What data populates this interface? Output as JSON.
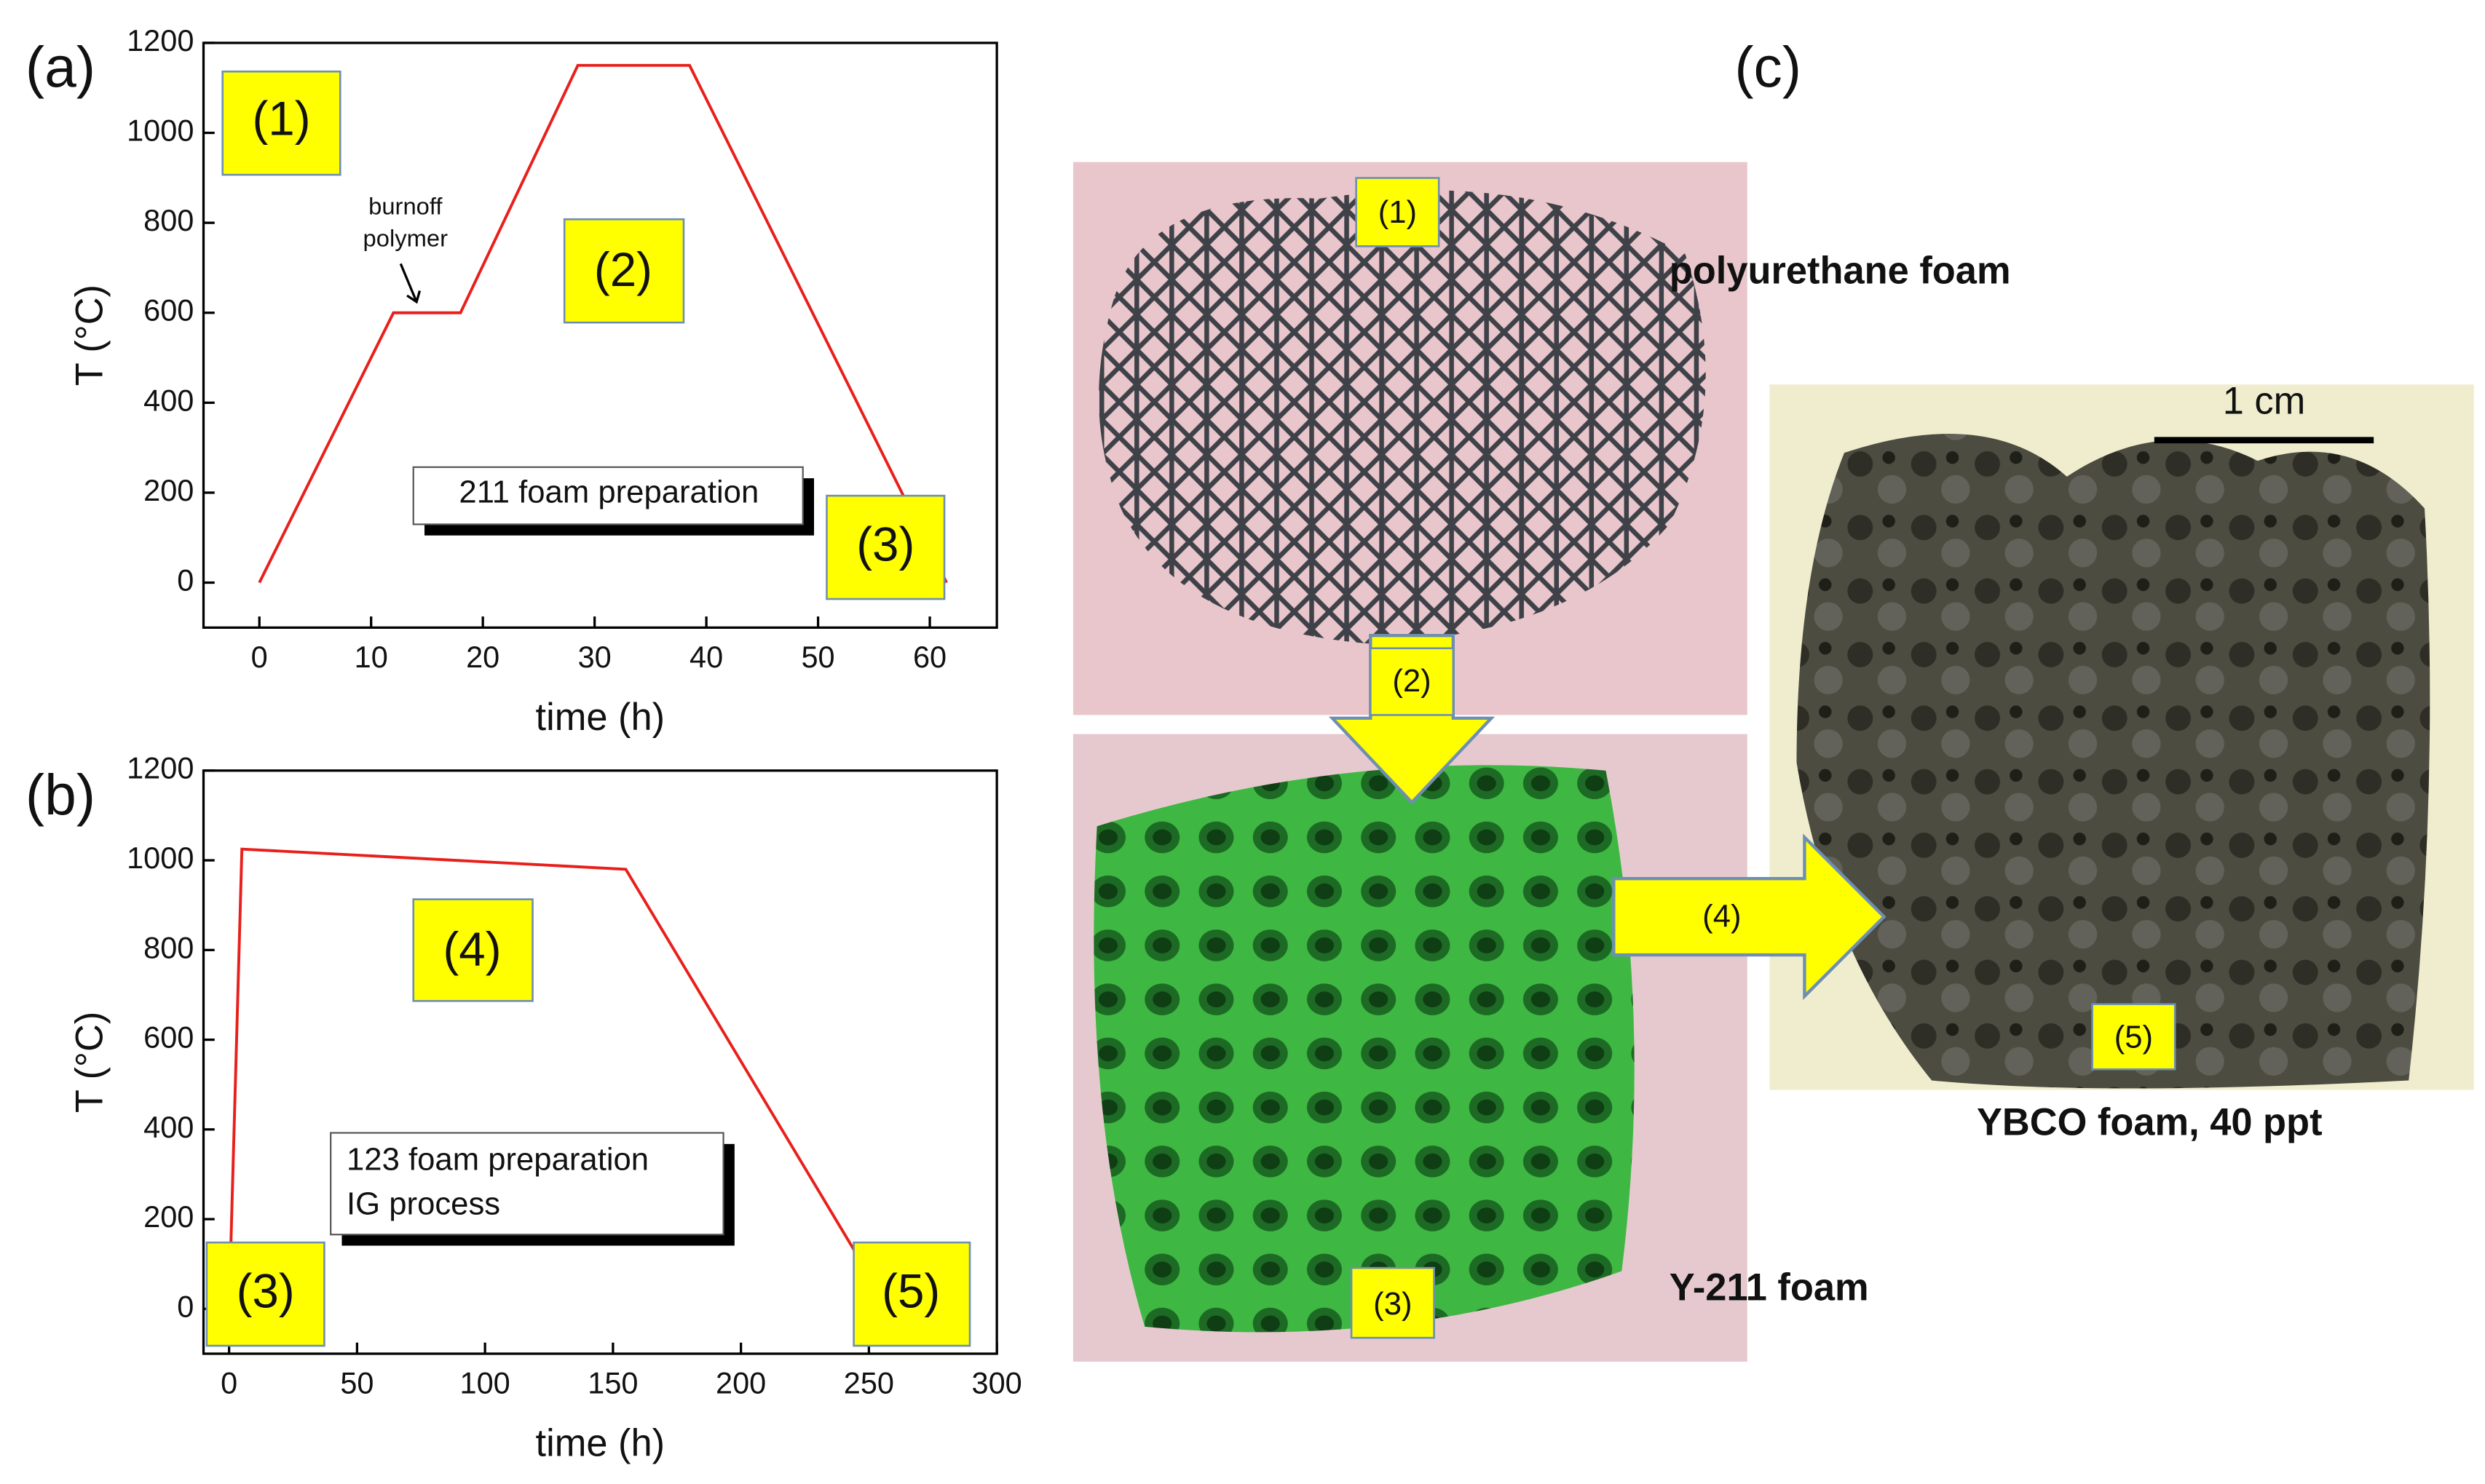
{
  "chart_data": [
    {
      "type": "line",
      "panel": "(a)",
      "x_label": "time (h)",
      "y_label": "T (°C)",
      "x": [
        0,
        12,
        18,
        28.5,
        38.5,
        61.5
      ],
      "values": [
        0,
        600,
        600,
        1150,
        1150,
        0
      ],
      "color": "#e8201c",
      "xlim": [
        -5,
        66
      ],
      "ylim": [
        -100,
        1200
      ],
      "xticks": [
        0,
        10,
        20,
        30,
        40,
        50,
        60
      ],
      "yticks": [
        0,
        200,
        400,
        600,
        800,
        1000,
        1200
      ],
      "annotations": [
        "(1)",
        "(2)",
        "(3)",
        "burnoff",
        "polymer",
        "211 foam preparation"
      ]
    },
    {
      "type": "line",
      "panel": "(b)",
      "x_label": "time (h)",
      "y_label": "T (°C)",
      "x": [
        0,
        5,
        155,
        258
      ],
      "values": [
        0,
        1025,
        980,
        0
      ],
      "color": "#e8201c",
      "xlim": [
        -10,
        300
      ],
      "ylim": [
        -100,
        1200
      ],
      "xticks": [
        0,
        50,
        100,
        150,
        200,
        250,
        300
      ],
      "yticks": [
        0,
        200,
        400,
        600,
        800,
        1000,
        1200
      ],
      "annotations": [
        "(3)",
        "(4)",
        "(5)",
        "123 foam preparation",
        "IG process"
      ]
    }
  ],
  "panel_c": {
    "label": "(c)",
    "steps": [
      "(1)",
      "(2)",
      "(3)",
      "(4)",
      "(5)"
    ],
    "captions": [
      "polyurethane foam",
      "Y-211 foam",
      "YBCO foam, 40 ppt"
    ],
    "scale_bar": "1 cm"
  }
}
